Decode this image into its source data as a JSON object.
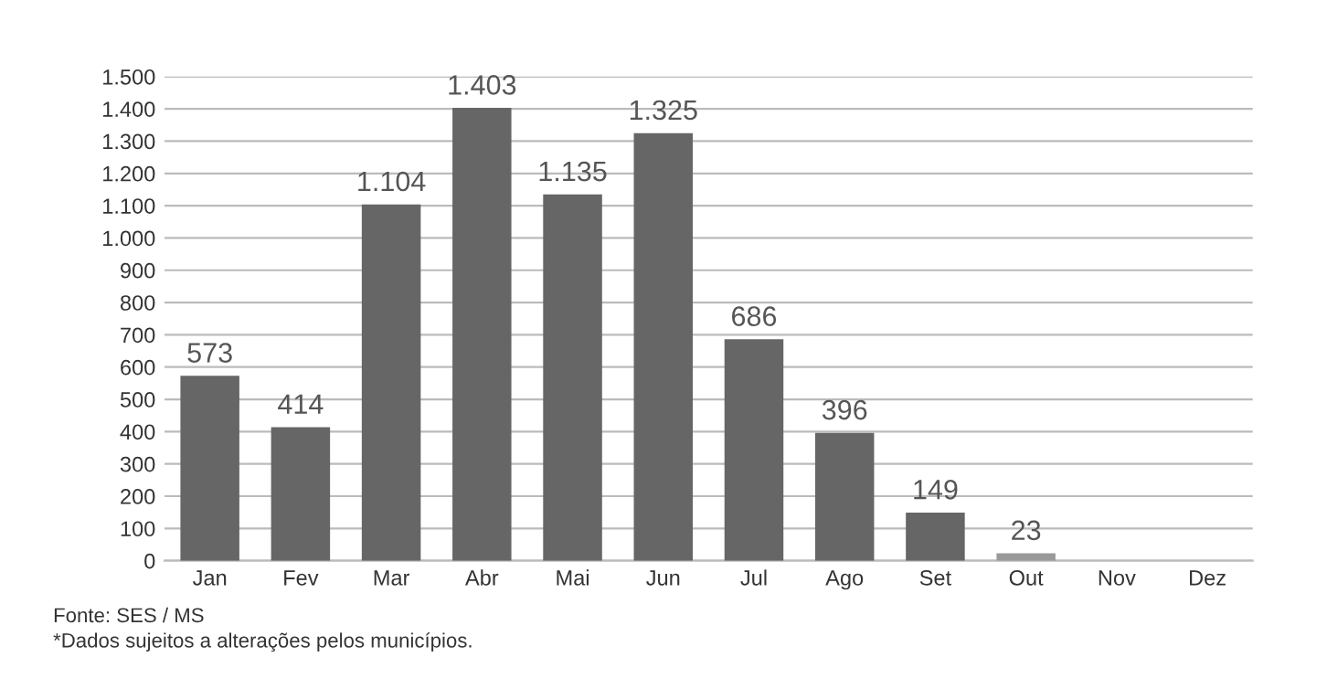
{
  "chart_data": {
    "type": "bar",
    "categories": [
      "Jan",
      "Fev",
      "Mar",
      "Abr",
      "Mai",
      "Jun",
      "Jul",
      "Ago",
      "Set",
      "Out",
      "Nov",
      "Dez"
    ],
    "values": [
      573,
      414,
      1104,
      1403,
      1135,
      1325,
      686,
      396,
      149,
      23,
      null,
      null
    ],
    "colors": [
      "#666666",
      "#666666",
      "#666666",
      "#666666",
      "#666666",
      "#666666",
      "#666666",
      "#666666",
      "#666666",
      "#999999",
      "#666666",
      "#666666"
    ],
    "value_labels": [
      "573",
      "414",
      "1.104",
      "1.403",
      "1.135",
      "1.325",
      "686",
      "396",
      "149",
      "23",
      null,
      null
    ],
    "ylim": [
      0,
      1500
    ],
    "yticks": [
      {
        "value": 0,
        "label": "0"
      },
      {
        "value": 100,
        "label": "100"
      },
      {
        "value": 200,
        "label": "200"
      },
      {
        "value": 300,
        "label": "300"
      },
      {
        "value": 400,
        "label": "400"
      },
      {
        "value": 500,
        "label": "500"
      },
      {
        "value": 600,
        "label": "600"
      },
      {
        "value": 700,
        "label": "700"
      },
      {
        "value": 800,
        "label": "800"
      },
      {
        "value": 900,
        "label": "900"
      },
      {
        "value": 1000,
        "label": "1.000"
      },
      {
        "value": 1100,
        "label": "1.100"
      },
      {
        "value": 1200,
        "label": "1.200"
      },
      {
        "value": 1300,
        "label": "1.300"
      },
      {
        "value": 1400,
        "label": "1.400"
      },
      {
        "value": 1500,
        "label": "1.500"
      }
    ],
    "grid": "y",
    "annotations": [
      "Fonte: SES / MS",
      "*Dados sujeitos a alterações pelos municípios."
    ]
  }
}
